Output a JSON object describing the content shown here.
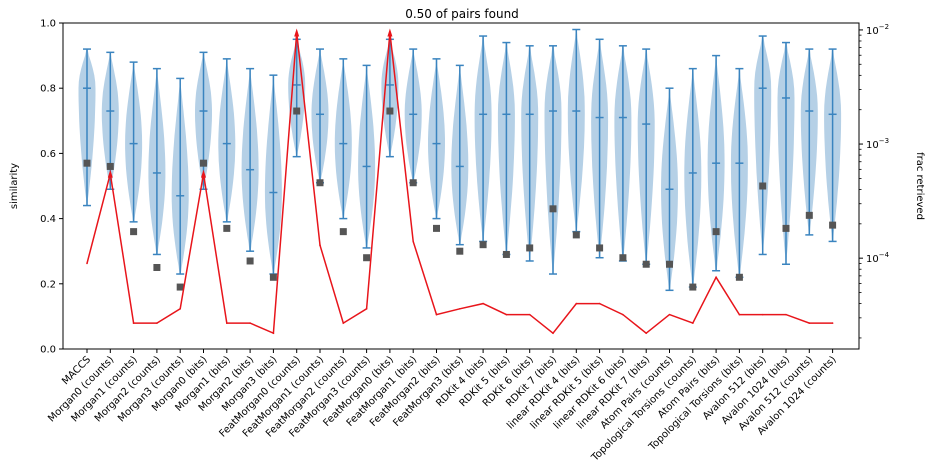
{
  "chart_data": {
    "type": "violin",
    "title": "0.50 of pairs found",
    "ylabel": "similarity",
    "ylabel_right": "frac retrieved",
    "ylim": [
      0,
      1
    ],
    "yticks": [
      "0.0",
      "0.2",
      "0.4",
      "0.6",
      "0.8",
      "1.0"
    ],
    "y2_scale": "log",
    "y2lim": [
      1.6e-05,
      0.0115
    ],
    "colors": {
      "violin": "#a8c8e2",
      "whisker": "#3a84bf",
      "marker": "#555555",
      "line": "#e8151b"
    },
    "categories": [
      "MACCS",
      "Morgan0 (counts)",
      "Morgan1 (counts)",
      "Morgan2 (counts)",
      "Morgan3 (counts)",
      "Morgan0 (bits)",
      "Morgan1 (bits)",
      "Morgan2 (bits)",
      "Morgan3 (bits)",
      "FeatMorgan0 (counts)",
      "FeatMorgan1 (counts)",
      "FeatMorgan2 (counts)",
      "FeatMorgan3 (counts)",
      "FeatMorgan0 (bits)",
      "FeatMorgan1 (bits)",
      "FeatMorgan2 (bits)",
      "FeatMorgan3 (bits)",
      "RDKit 4 (bits)",
      "RDKit 5 (bits)",
      "RDKit 6 (bits)",
      "RDKit 7 (bits)",
      "linear RDKit 4 (bits)",
      "linear RDKit 5 (bits)",
      "linear RDKit 6 (bits)",
      "linear RDKit 7 (bits)",
      "Atom Pairs (counts)",
      "Topological Torsions (counts)",
      "Atom Pairs (bits)",
      "Topological Torsions (bits)",
      "Avalon 512 (bits)",
      "Avalon 1024 (bits)",
      "Avalon 512 (counts)",
      "Avalon 1024 (counts)"
    ],
    "violin_min": [
      0.44,
      0.49,
      0.39,
      0.29,
      0.23,
      0.49,
      0.39,
      0.3,
      0.23,
      0.59,
      0.51,
      0.4,
      0.31,
      0.59,
      0.51,
      0.4,
      0.32,
      0.33,
      0.29,
      0.27,
      0.23,
      0.36,
      0.28,
      0.27,
      0.26,
      0.18,
      0.19,
      0.24,
      0.22,
      0.29,
      0.26,
      0.35,
      0.33
    ],
    "violin_max": [
      0.92,
      0.91,
      0.88,
      0.86,
      0.83,
      0.91,
      0.89,
      0.86,
      0.84,
      0.95,
      0.92,
      0.89,
      0.87,
      0.95,
      0.92,
      0.89,
      0.87,
      0.96,
      0.94,
      0.93,
      0.93,
      0.98,
      0.95,
      0.93,
      0.92,
      0.8,
      0.86,
      0.9,
      0.86,
      0.96,
      0.94,
      0.92,
      0.92
    ],
    "violin_median": [
      0.8,
      0.73,
      0.63,
      0.54,
      0.47,
      0.73,
      0.63,
      0.55,
      0.48,
      0.81,
      0.72,
      0.63,
      0.56,
      0.81,
      0.72,
      0.63,
      0.56,
      0.72,
      0.72,
      0.72,
      0.73,
      0.73,
      0.71,
      0.71,
      0.69,
      0.49,
      0.54,
      0.57,
      0.57,
      0.8,
      0.77,
      0.73,
      0.72
    ],
    "marker_values": [
      0.57,
      0.56,
      0.36,
      0.25,
      0.19,
      0.57,
      0.37,
      0.27,
      0.22,
      0.73,
      0.51,
      0.36,
      0.28,
      0.73,
      0.51,
      0.37,
      0.3,
      0.32,
      0.29,
      0.31,
      0.43,
      0.35,
      0.31,
      0.28,
      0.26,
      0.26,
      0.19,
      0.36,
      0.22,
      0.5,
      0.37,
      0.41,
      0.38
    ],
    "frac_retrieved": [
      9e-05,
      0.00055,
      2.7e-05,
      2.7e-05,
      3.6e-05,
      0.00055,
      2.7e-05,
      2.7e-05,
      2.2e-05,
      0.0095,
      0.00013,
      2.7e-05,
      3.6e-05,
      0.0095,
      0.00014,
      3.2e-05,
      3.6e-05,
      4e-05,
      3.2e-05,
      3.2e-05,
      2.2e-05,
      4e-05,
      4e-05,
      3.2e-05,
      2.2e-05,
      3.2e-05,
      2.7e-05,
      6.8e-05,
      3.2e-05,
      3.2e-05,
      3.2e-05,
      2.7e-05,
      2.7e-05
    ],
    "y2_ticks": [
      {
        "value": 0.0001,
        "base": "10",
        "exp": "−4"
      },
      {
        "value": 0.001,
        "base": "10",
        "exp": "−3"
      },
      {
        "value": 0.01,
        "base": "10",
        "exp": "−2"
      }
    ]
  }
}
